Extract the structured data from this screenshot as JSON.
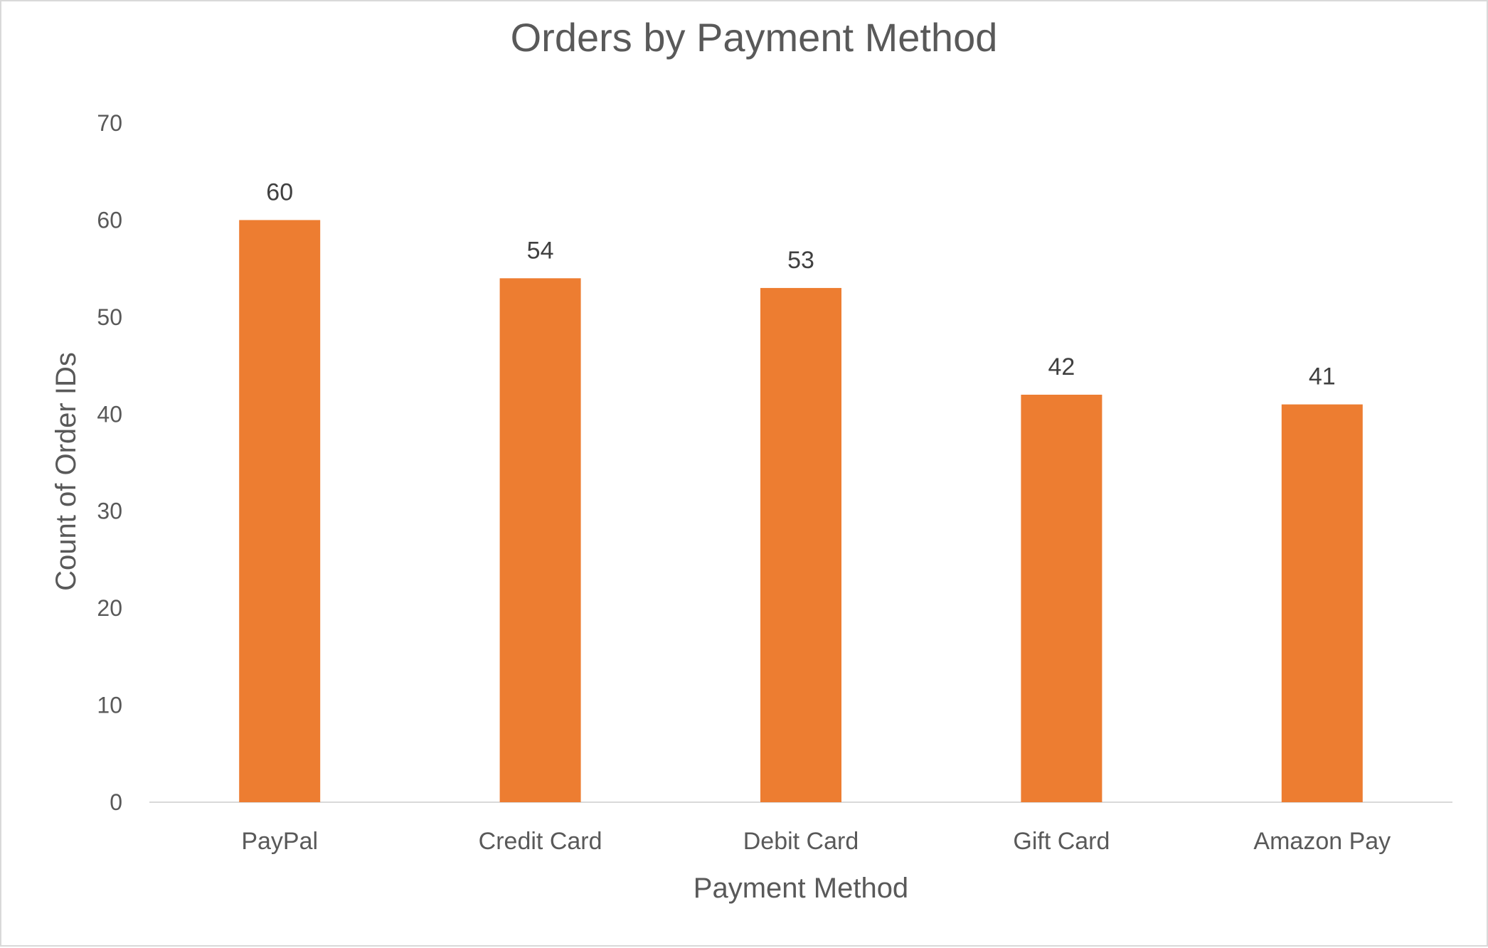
{
  "chart_data": {
    "type": "bar",
    "title": "Orders by Payment Method",
    "xlabel": "Payment Method",
    "ylabel": "Count of Order IDs",
    "categories": [
      "PayPal",
      "Credit Card",
      "Debit Card",
      "Gift Card",
      "Amazon Pay"
    ],
    "values": [
      60,
      54,
      53,
      42,
      41
    ],
    "ylim": [
      0,
      70
    ],
    "yticks": [
      0,
      10,
      20,
      30,
      40,
      50,
      60,
      70
    ],
    "grid": false,
    "data_labels": true,
    "bar_color": "#ED7D31",
    "axis_color": "#d9d9d9"
  }
}
